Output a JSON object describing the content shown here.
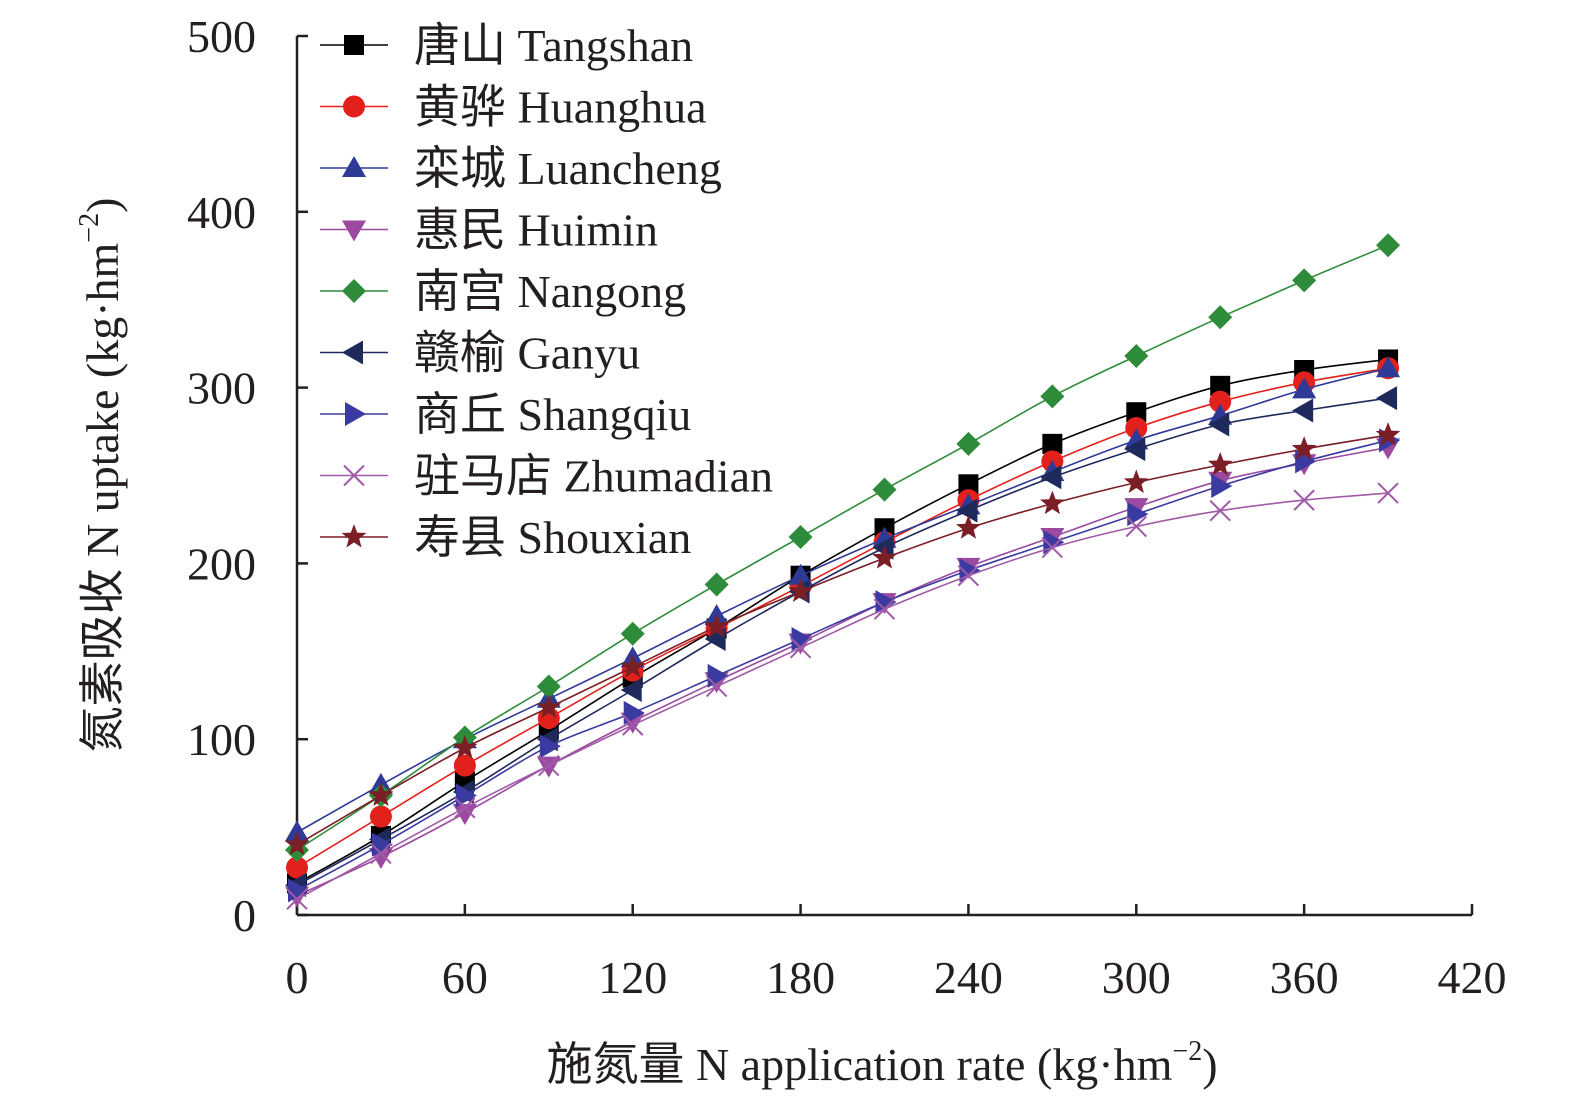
{
  "chart_data": {
    "type": "line",
    "title": "",
    "xlabel": "施氮量 N application rate (kg·hm",
    "xlabel_sup": "−2",
    "xlabel_close": ")",
    "ylabel": "氮素吸收 N uptake (kg·hm",
    "ylabel_sup": "−2",
    "ylabel_close": ")",
    "xlim": [
      0,
      420
    ],
    "ylim": [
      0,
      500
    ],
    "xticks": [
      0,
      60,
      120,
      180,
      240,
      300,
      360,
      420
    ],
    "yticks": [
      0,
      100,
      200,
      300,
      400,
      500
    ],
    "grid": false,
    "legend_position": "top-left",
    "x": [
      0,
      30,
      60,
      90,
      120,
      150,
      180,
      210,
      240,
      270,
      300,
      330,
      360,
      390
    ],
    "series": [
      {
        "name": "唐山 Tangshan",
        "color": "#000000",
        "marker": "square",
        "values": [
          18,
          45,
          76,
          105,
          135,
          163,
          193,
          220,
          245,
          268,
          286,
          301,
          310,
          316
        ]
      },
      {
        "name": "黄骅 Huanghua",
        "color": "#e2211c",
        "marker": "circle",
        "values": [
          27,
          56,
          85,
          112,
          139,
          163,
          187,
          212,
          236,
          258,
          277,
          292,
          303,
          311
        ]
      },
      {
        "name": "栾城 Luancheng",
        "color": "#2e3a96",
        "marker": "triangle-up",
        "values": [
          47,
          74,
          100,
          123,
          146,
          170,
          193,
          214,
          233,
          252,
          270,
          284,
          299,
          311
        ]
      },
      {
        "name": "惠民 Huimin",
        "color": "#9b4aa0",
        "marker": "triangle-down",
        "values": [
          11,
          33,
          58,
          85,
          110,
          133,
          155,
          178,
          198,
          215,
          232,
          247,
          257,
          266
        ]
      },
      {
        "name": "南宫 Nangong",
        "color": "#2e8b3a",
        "marker": "diamond",
        "values": [
          37,
          68,
          101,
          130,
          160,
          188,
          215,
          242,
          268,
          295,
          318,
          340,
          361,
          381
        ]
      },
      {
        "name": "赣榆 Ganyu",
        "color": "#1f2a5c",
        "marker": "triangle-left",
        "values": [
          17,
          43,
          70,
          100,
          128,
          157,
          184,
          209,
          230,
          249,
          265,
          279,
          287,
          294
        ]
      },
      {
        "name": "商丘 Shangqiu",
        "color": "#3a3aa0",
        "marker": "triangle-right",
        "values": [
          14,
          40,
          68,
          96,
          115,
          136,
          157,
          178,
          196,
          212,
          228,
          244,
          258,
          270
        ]
      },
      {
        "name": "驻马店 Zhumadian",
        "color": "#a05aa8",
        "marker": "x",
        "values": [
          9,
          35,
          61,
          85,
          108,
          130,
          152,
          174,
          193,
          209,
          221,
          230,
          236,
          240
        ]
      },
      {
        "name": "寿县 Shouxian",
        "color": "#7a1f25",
        "marker": "star",
        "values": [
          40,
          68,
          95,
          118,
          141,
          164,
          184,
          203,
          220,
          234,
          246,
          256,
          265,
          273
        ]
      }
    ]
  }
}
